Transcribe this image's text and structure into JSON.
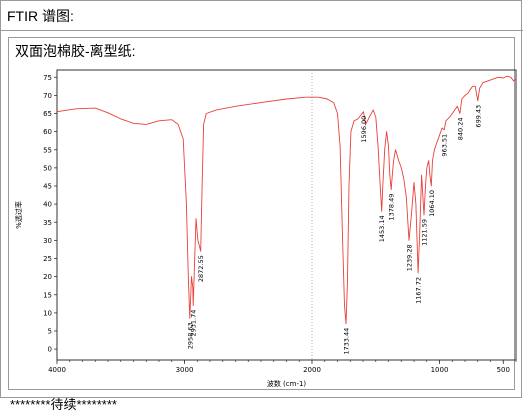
{
  "section_title": "FTIR 谱图:",
  "sample_title": "双面泡棉胶-离型纸:",
  "footer_text": "********待续********",
  "colors": {
    "spectrum": "#e8403a",
    "axis": "#333333",
    "frame": "#9a9a9a",
    "text": "#000000"
  },
  "chart_data": {
    "type": "line",
    "title": "",
    "xlabel": "波数 (cm-1)",
    "ylabel": "%透过率",
    "xlim": [
      4000,
      400
    ],
    "ylim": [
      -3,
      77
    ],
    "xticks": [
      4000,
      3000,
      2000,
      1000,
      500
    ],
    "x_minor_step": 100,
    "yticks": [
      0,
      5,
      10,
      15,
      20,
      25,
      30,
      35,
      40,
      45,
      50,
      55,
      60,
      65,
      70,
      75
    ],
    "gridline_x": 2000,
    "series": [
      {
        "values": [
          [
            4000,
            65.5
          ],
          [
            3850,
            66.3
          ],
          [
            3700,
            66.5
          ],
          [
            3600,
            65.2
          ],
          [
            3500,
            63.5
          ],
          [
            3400,
            62.3
          ],
          [
            3300,
            62.0
          ],
          [
            3200,
            63.0
          ],
          [
            3100,
            63.3
          ],
          [
            3050,
            62.0
          ],
          [
            3010,
            58.0
          ],
          [
            2985,
            40.0
          ],
          [
            2970,
            20.0
          ],
          [
            2958.63,
            8.5
          ],
          [
            2945,
            20.0
          ],
          [
            2935,
            17.0
          ],
          [
            2931.74,
            12.0
          ],
          [
            2920,
            25.0
          ],
          [
            2910,
            36.0
          ],
          [
            2895,
            30.0
          ],
          [
            2880,
            28.0
          ],
          [
            2872.55,
            27.0
          ],
          [
            2862,
            45.0
          ],
          [
            2850,
            62.0
          ],
          [
            2830,
            65.0
          ],
          [
            2750,
            66.0
          ],
          [
            2600,
            67.0
          ],
          [
            2400,
            68.0
          ],
          [
            2200,
            69.0
          ],
          [
            2050,
            69.5
          ],
          [
            1950,
            69.5
          ],
          [
            1880,
            69.0
          ],
          [
            1830,
            68.0
          ],
          [
            1800,
            65.0
          ],
          [
            1780,
            56.0
          ],
          [
            1760,
            30.0
          ],
          [
            1745,
            12.0
          ],
          [
            1733.44,
            7.0
          ],
          [
            1722,
            18.0
          ],
          [
            1710,
            45.0
          ],
          [
            1695,
            60.0
          ],
          [
            1670,
            63.0
          ],
          [
            1640,
            63.5
          ],
          [
            1596,
            65.5
          ],
          [
            1580,
            62.0
          ],
          [
            1550,
            64.0
          ],
          [
            1520,
            66.0
          ],
          [
            1500,
            64.0
          ],
          [
            1480,
            55.0
          ],
          [
            1465,
            45.0
          ],
          [
            1453.14,
            38.0
          ],
          [
            1445,
            45.0
          ],
          [
            1430,
            55.0
          ],
          [
            1415,
            60.0
          ],
          [
            1400,
            56.0
          ],
          [
            1390,
            48.0
          ],
          [
            1378.49,
            44.0
          ],
          [
            1370,
            48.0
          ],
          [
            1360,
            52.0
          ],
          [
            1345,
            55.0
          ],
          [
            1320,
            52.0
          ],
          [
            1300,
            50.0
          ],
          [
            1280,
            47.0
          ],
          [
            1260,
            42.0
          ],
          [
            1239.28,
            30.0
          ],
          [
            1220,
            37.0
          ],
          [
            1200,
            46.0
          ],
          [
            1185,
            40.0
          ],
          [
            1167.72,
            21.0
          ],
          [
            1155,
            32.0
          ],
          [
            1140,
            48.0
          ],
          [
            1130,
            42.0
          ],
          [
            1121.59,
            37.0
          ],
          [
            1110,
            45.0
          ],
          [
            1100,
            50.0
          ],
          [
            1085,
            52.0
          ],
          [
            1075,
            48.0
          ],
          [
            1064.1,
            45.0
          ],
          [
            1055,
            52.0
          ],
          [
            1040,
            55.0
          ],
          [
            1020,
            57.0
          ],
          [
            1000,
            59.0
          ],
          [
            980,
            61.0
          ],
          [
            963.51,
            60.5
          ],
          [
            950,
            63.0
          ],
          [
            920,
            64.0
          ],
          [
            900,
            65.0
          ],
          [
            880,
            66.0
          ],
          [
            860,
            67.0
          ],
          [
            840.24,
            65.0
          ],
          [
            825,
            69.0
          ],
          [
            800,
            70.0
          ],
          [
            780,
            70.5
          ],
          [
            760,
            71.5
          ],
          [
            740,
            72.5
          ],
          [
            720,
            72.5
          ],
          [
            699.43,
            68.5
          ],
          [
            685,
            72.0
          ],
          [
            660,
            73.5
          ],
          [
            620,
            74.0
          ],
          [
            580,
            74.5
          ],
          [
            540,
            75.0
          ],
          [
            500,
            74.8
          ],
          [
            470,
            75.3
          ],
          [
            440,
            75.0
          ],
          [
            420,
            74.0
          ],
          [
            400,
            74.5
          ]
        ]
      }
    ],
    "peak_labels": [
      {
        "x": 2958.63,
        "y": 8.5,
        "label": "2958.63"
      },
      {
        "x": 2931.74,
        "y": 12.0,
        "label": "2931.74"
      },
      {
        "x": 2872.55,
        "y": 27.0,
        "label": "2872.55"
      },
      {
        "x": 1733.44,
        "y": 7.0,
        "label": "1733.44"
      },
      {
        "x": 1596.0,
        "y": 65.5,
        "label": "1596.00"
      },
      {
        "x": 1453.14,
        "y": 38.0,
        "label": "1453.14"
      },
      {
        "x": 1378.49,
        "y": 44.0,
        "label": "1378.49"
      },
      {
        "x": 1239.28,
        "y": 30.0,
        "label": "1239.28"
      },
      {
        "x": 1167.72,
        "y": 21.0,
        "label": "1167.72"
      },
      {
        "x": 1121.59,
        "y": 37.0,
        "label": "1121.59"
      },
      {
        "x": 1064.1,
        "y": 45.0,
        "label": "1064.10"
      },
      {
        "x": 963.51,
        "y": 60.5,
        "label": "963.51"
      },
      {
        "x": 840.24,
        "y": 65.0,
        "label": "840.24"
      },
      {
        "x": 699.43,
        "y": 68.5,
        "label": "699.43"
      }
    ]
  }
}
